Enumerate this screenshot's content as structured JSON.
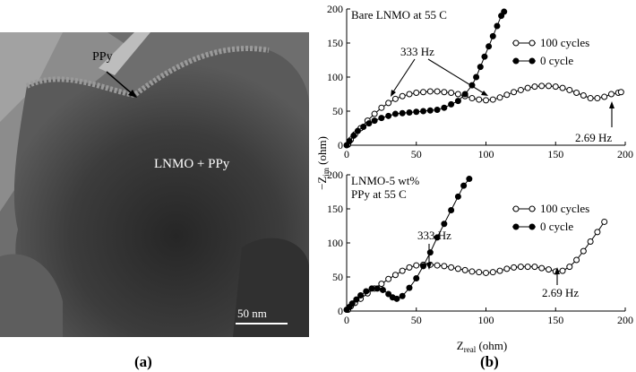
{
  "panel_a": {
    "label": "(a)",
    "annotations": {
      "ppy": "PPy",
      "composite": "LNMO + PPy"
    },
    "scale_bar": "50 nm"
  },
  "panel_b": {
    "label": "(b)",
    "y_axis_label": "−Z",
    "y_axis_subscript": "im",
    "y_axis_unit": " (ohm)",
    "x_axis_label": "Z",
    "x_axis_subscript": "real",
    "x_axis_unit": " (ohm)"
  },
  "chart_data": [
    {
      "type": "line",
      "title": "Bare LNMO at 55 C",
      "xlim": [
        0,
        200
      ],
      "ylim": [
        0,
        200
      ],
      "x_ticks": [
        0,
        50,
        100,
        150,
        200
      ],
      "y_ticks": [
        0,
        50,
        100,
        150,
        200
      ],
      "legend_position": "top-right",
      "annotations": [
        "333 Hz",
        "2.69 Hz"
      ],
      "series": [
        {
          "name": "100 cycles",
          "marker": "open-circle",
          "x": [
            1,
            3,
            6,
            10,
            15,
            20,
            25,
            30,
            35,
            40,
            45,
            50,
            55,
            60,
            65,
            70,
            75,
            80,
            85,
            90,
            95,
            100,
            105,
            110,
            115,
            120,
            125,
            130,
            135,
            140,
            145,
            150,
            155,
            160,
            165,
            170,
            175,
            180,
            185,
            190,
            195,
            197
          ],
          "y": [
            1,
            8,
            16,
            25,
            36,
            46,
            55,
            62,
            68,
            72,
            75,
            77,
            78,
            79,
            79,
            78,
            77,
            75,
            72,
            69,
            67,
            66,
            67,
            70,
            74,
            78,
            81,
            84,
            86,
            87,
            87,
            86,
            84,
            81,
            77,
            73,
            69,
            69,
            71,
            75,
            77,
            78
          ]
        },
        {
          "name": "0 cycle",
          "marker": "filled-circle",
          "x": [
            0,
            2,
            5,
            8,
            12,
            16,
            20,
            25,
            30,
            35,
            40,
            45,
            50,
            55,
            60,
            65,
            70,
            75,
            80,
            85,
            90,
            93,
            96,
            99,
            102,
            105,
            108,
            111,
            113
          ],
          "y": [
            0,
            6,
            14,
            21,
            27,
            32,
            36,
            40,
            43,
            46,
            47,
            48,
            49,
            50,
            51,
            52,
            55,
            60,
            65,
            75,
            88,
            100,
            115,
            130,
            145,
            160,
            175,
            190,
            196
          ]
        }
      ]
    },
    {
      "type": "line",
      "title": "LNMO-5 wt%\nPPy at 55 C",
      "xlim": [
        0,
        200
      ],
      "ylim": [
        0,
        200
      ],
      "x_ticks": [
        0,
        50,
        100,
        150,
        200
      ],
      "y_ticks": [
        0,
        50,
        100,
        150,
        200
      ],
      "legend_position": "top-right",
      "annotations": [
        "333 Hz",
        "2.69 Hz"
      ],
      "series": [
        {
          "name": "100 cycles",
          "marker": "open-circle",
          "x": [
            1,
            3,
            6,
            10,
            15,
            20,
            25,
            30,
            35,
            40,
            45,
            50,
            55,
            60,
            65,
            70,
            75,
            80,
            85,
            90,
            95,
            100,
            105,
            110,
            115,
            120,
            125,
            130,
            135,
            140,
            145,
            150,
            155,
            160,
            165,
            170,
            175,
            180,
            185
          ],
          "y": [
            2,
            7,
            12,
            18,
            26,
            33,
            40,
            47,
            53,
            59,
            64,
            67,
            68,
            68,
            67,
            66,
            64,
            62,
            60,
            58,
            57,
            56,
            57,
            59,
            62,
            64,
            65,
            65,
            65,
            63,
            61,
            58,
            59,
            65,
            75,
            88,
            102,
            116,
            131
          ]
        },
        {
          "name": "0 cycle",
          "marker": "filled-circle",
          "x": [
            0,
            2,
            4,
            7,
            10,
            14,
            18,
            22,
            26,
            30,
            33,
            36,
            40,
            45,
            50,
            55,
            60,
            65,
            70,
            75,
            80,
            84,
            88
          ],
          "y": [
            2,
            6,
            11,
            17,
            23,
            29,
            33,
            33,
            31,
            25,
            20,
            18,
            22,
            34,
            48,
            66,
            86,
            108,
            128,
            148,
            168,
            184,
            194
          ]
        }
      ]
    }
  ]
}
